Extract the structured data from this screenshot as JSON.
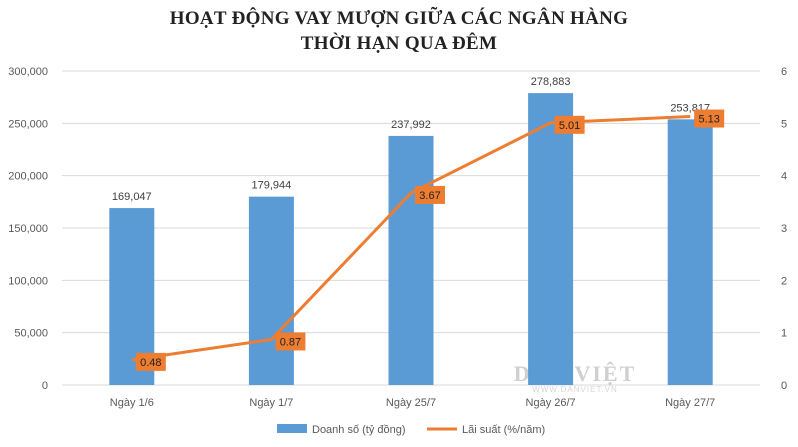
{
  "chart_data": {
    "type": "bar",
    "title_line1": "HOẠT ĐỘNG VAY MƯỢN GIỮA CÁC NGÂN HÀNG",
    "title_line2": "THỜI HẠN QUA ĐÊM",
    "categories": [
      "Ngày 1/6",
      "Ngày 1/7",
      "Ngày 25/7",
      "Ngày 26/7",
      "Ngày 27/7"
    ],
    "series": [
      {
        "name": "Doanh số (tỷ đồng)",
        "type": "bar",
        "axis": "left",
        "values": [
          169047,
          179944,
          237992,
          278883,
          253817
        ],
        "labels": [
          "169,047",
          "179,944",
          "237,992",
          "278,883",
          "253,817"
        ],
        "color": "#5B9BD5"
      },
      {
        "name": "Lãi suất (%/năm)",
        "type": "line",
        "axis": "right",
        "values": [
          0.48,
          0.87,
          3.67,
          5.01,
          5.13
        ],
        "labels": [
          "0.48",
          "0.87",
          "3.67",
          "5.01",
          "5.13"
        ],
        "color": "#ED7D31"
      }
    ],
    "y_left": {
      "ylim": [
        0,
        300000
      ],
      "ticks": [
        0,
        50000,
        100000,
        150000,
        200000,
        250000,
        300000
      ],
      "tick_labels": [
        "0",
        "50,000",
        "100,000",
        "150,000",
        "200,000",
        "250,000",
        "300,000"
      ]
    },
    "y_right": {
      "ylim": [
        0,
        6
      ],
      "ticks": [
        0,
        1,
        2,
        3,
        4,
        5,
        6
      ],
      "tick_labels": [
        "0",
        "1",
        "2",
        "3",
        "4",
        "5",
        "6"
      ]
    },
    "grid": true,
    "legend": "bottom"
  },
  "watermark": {
    "main": "DÂN VIỆT",
    "sub": "WWW.DANVIET.VN"
  }
}
